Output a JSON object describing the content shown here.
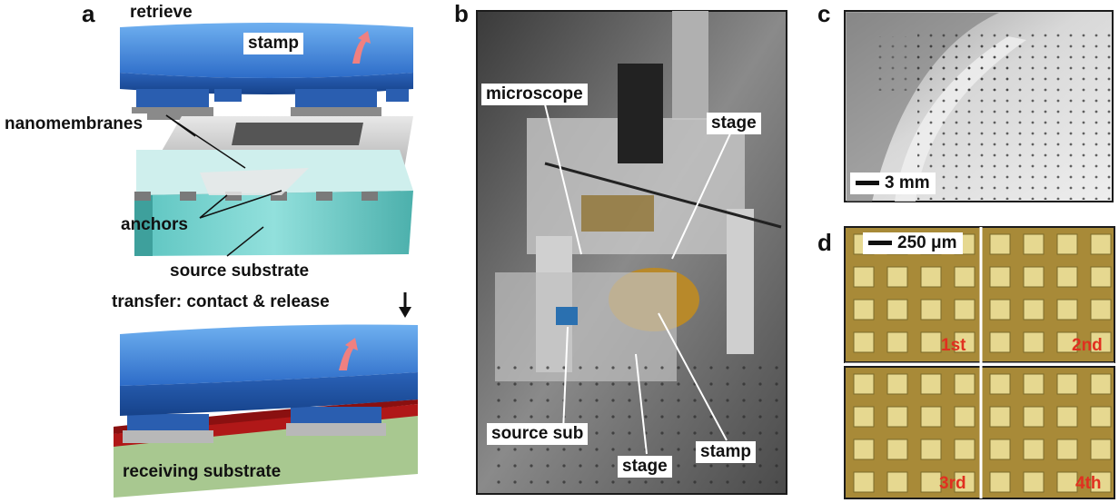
{
  "panels": {
    "a": {
      "letter": "a",
      "retrieve": "retrieve",
      "stamp": "stamp",
      "nanomembranes": "nanomembranes",
      "anchors": "anchors",
      "source_substrate": "source substrate",
      "transfer": "transfer: contact & release",
      "receiving_substrate": "receiving substrate"
    },
    "b": {
      "letter": "b",
      "microscope": "microscope",
      "stage_top": "stage",
      "source_sub": "source sub",
      "stage_bottom": "stage",
      "stamp": "stamp"
    },
    "c": {
      "letter": "c",
      "scale_bar": "3 mm"
    },
    "d": {
      "letter": "d",
      "scale_bar": "250 μm",
      "tiles": [
        "1st",
        "2nd",
        "3rd",
        "4th"
      ]
    }
  },
  "colors": {
    "stamp_blue": "#3a78d0",
    "source_cyan": "#7fd6d2",
    "receiving_red": "#b01818",
    "receiving_green": "#a8c890",
    "tile_gold": "#a88a38",
    "tile_square": "#e6d890",
    "ordinal_red": "#e03020"
  }
}
